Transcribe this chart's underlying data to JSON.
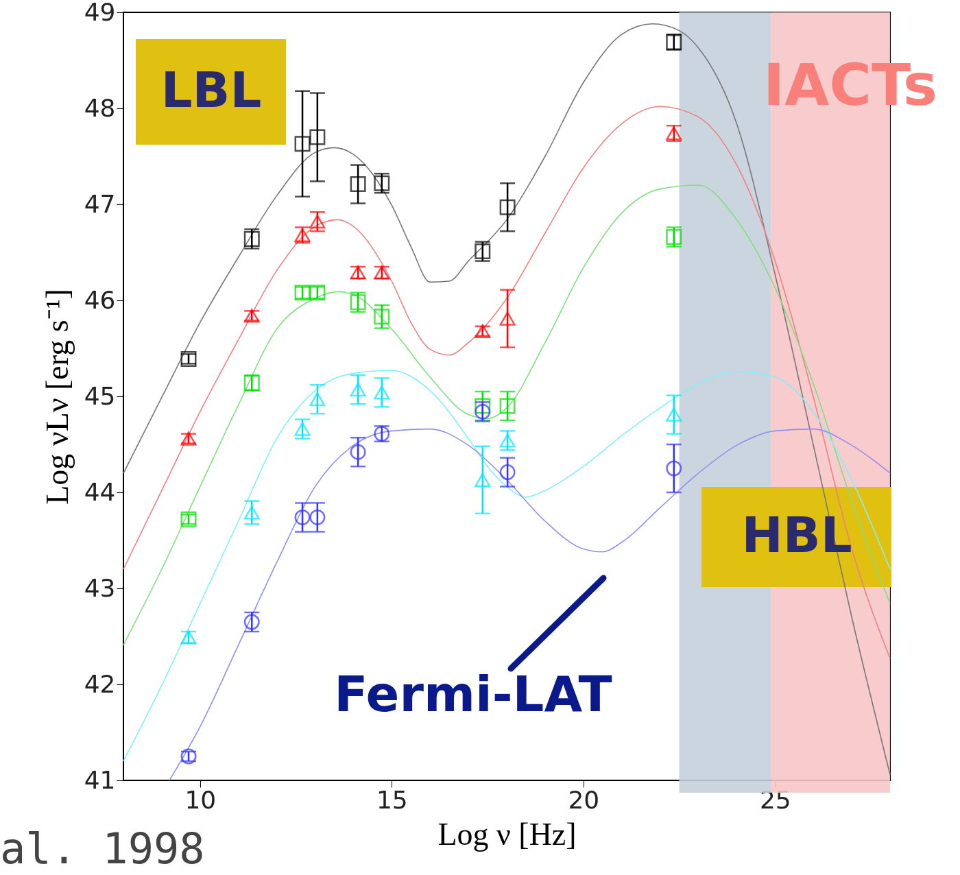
{
  "chart_data": {
    "type": "scatter",
    "xlabel": "Log ν [Hz]",
    "ylabel": "Log νLν [erg s⁻¹]",
    "xlim": [
      8,
      28
    ],
    "ylim": [
      41,
      49
    ],
    "xticks": [
      10,
      15,
      20,
      25
    ],
    "yticks": [
      41,
      42,
      43,
      44,
      45,
      46,
      47,
      48,
      49
    ],
    "bands": [
      {
        "axis": "x",
        "from": 22.5,
        "to": 24.9,
        "color": "#c5d0dc"
      },
      {
        "axis": "x",
        "from": 24.9,
        "to": 28,
        "color": "#f7c5c8"
      }
    ],
    "annotations": [
      "LBL",
      "HBL",
      "IACTs",
      "Fermi-LAT",
      "al. 1998"
    ],
    "series": [
      {
        "type": "line",
        "color": "#777777",
        "x": [
          8,
          9,
          10,
          11,
          12,
          13,
          13.5,
          14,
          15,
          15.5,
          16,
          16.5,
          17,
          18,
          19,
          20,
          21,
          21.8,
          22.5,
          23,
          24,
          25,
          26,
          27,
          28
        ],
        "values": [
          44.2,
          44.99,
          45.77,
          46.45,
          47.09,
          47.54,
          47.59,
          47.52,
          46.99,
          46.56,
          46.19,
          46.2,
          46.41,
          46.84,
          47.5,
          48.27,
          48.77,
          48.88,
          48.81,
          48.63,
          47.84,
          46.27,
          44.49,
          42.7,
          41.06
        ]
      },
      {
        "type": "line",
        "color": "#f08080",
        "x": [
          8,
          9,
          10,
          11,
          12,
          13,
          13.6,
          14,
          15,
          15.5,
          16,
          16.5,
          17,
          18,
          19,
          20,
          21,
          22,
          23,
          24,
          25,
          26,
          27,
          28
        ],
        "values": [
          43.2,
          44.02,
          44.84,
          45.59,
          46.31,
          46.77,
          46.84,
          46.77,
          46.2,
          45.77,
          45.49,
          45.43,
          45.56,
          46.02,
          46.7,
          47.38,
          47.84,
          48.02,
          47.91,
          47.41,
          46.41,
          44.99,
          43.41,
          42.27
        ]
      },
      {
        "type": "line",
        "color": "#80e080",
        "x": [
          8,
          9,
          10,
          11,
          12,
          13,
          13.6,
          14,
          15,
          16,
          17,
          17.5,
          18,
          19,
          20,
          21,
          22,
          23,
          24,
          25,
          26,
          27,
          28
        ],
        "values": [
          42.41,
          43.2,
          44.06,
          44.91,
          45.7,
          46.02,
          46.09,
          46.06,
          45.7,
          45.2,
          44.81,
          44.77,
          44.88,
          45.56,
          46.34,
          46.91,
          47.16,
          47.2,
          46.84,
          46.13,
          45.13,
          43.91,
          42.84
        ]
      },
      {
        "type": "line",
        "color": "#80f0ff",
        "x": [
          8,
          9,
          10,
          11,
          12,
          13,
          14,
          15,
          16,
          17,
          17.5,
          18,
          18.5,
          19,
          20,
          21,
          22,
          23,
          24,
          25,
          26,
          27,
          28
        ],
        "values": [
          41.2,
          41.99,
          42.84,
          43.7,
          44.56,
          45.06,
          45.24,
          45.27,
          45.06,
          44.56,
          44.27,
          44.06,
          43.95,
          44.02,
          44.27,
          44.59,
          44.88,
          45.13,
          45.26,
          45.2,
          44.84,
          44.13,
          43.2
        ]
      },
      {
        "type": "line",
        "color": "#9090f0",
        "x": [
          9.2,
          10,
          11,
          12,
          13,
          14,
          15,
          16,
          17,
          18,
          19,
          20,
          20.5,
          21,
          22,
          23,
          24,
          25,
          26,
          27,
          28
        ],
        "values": [
          41,
          41.56,
          42.41,
          43.27,
          44.06,
          44.49,
          44.64,
          44.66,
          44.49,
          44.13,
          43.7,
          43.41,
          43.38,
          43.48,
          43.84,
          44.2,
          44.49,
          44.64,
          44.66,
          44.49,
          44.2
        ]
      },
      {
        "marker": "square",
        "color": "#000000",
        "x": [
          9.7,
          11.35,
          12.67,
          13.06,
          14.12,
          14.74,
          17.37,
          18.02,
          22.36
        ],
        "values": [
          45.39,
          46.64,
          47.63,
          47.7,
          47.21,
          47.22,
          46.51,
          46.97,
          48.69
        ],
        "errors": [
          0.05,
          0.1,
          0.55,
          0.46,
          0.2,
          0.1,
          0.1,
          0.25,
          0.08
        ]
      },
      {
        "marker": "triangle",
        "color": "#ff0000",
        "x": [
          9.7,
          11.35,
          12.67,
          13.06,
          14.12,
          14.74,
          17.37,
          18.02,
          22.36
        ],
        "values": [
          44.56,
          45.84,
          46.68,
          46.82,
          46.29,
          46.29,
          45.68,
          45.81,
          47.74
        ],
        "errors": [
          0.05,
          0.05,
          0.08,
          0.1,
          0.06,
          0.06,
          0.05,
          0.3,
          0.08
        ]
      },
      {
        "marker": "square",
        "color": "#00dd00",
        "x": [
          9.7,
          11.35,
          12.67,
          13.06,
          14.12,
          14.74,
          17.37,
          18.02,
          22.36
        ],
        "values": [
          43.72,
          45.14,
          46.08,
          46.08,
          45.98,
          45.83,
          44.9,
          44.9,
          46.66
        ],
        "errors": [
          0.05,
          0.08,
          0.06,
          0.06,
          0.1,
          0.12,
          0.15,
          0.15,
          0.1
        ]
      },
      {
        "marker": "triangle",
        "color": "#00e5ff",
        "x": [
          9.7,
          11.35,
          12.67,
          13.06,
          14.12,
          14.74,
          17.37,
          18.02,
          22.36
        ],
        "values": [
          42.49,
          43.79,
          44.66,
          44.97,
          45.07,
          45.04,
          44.13,
          44.54,
          44.81
        ],
        "errors": [
          0.06,
          0.12,
          0.1,
          0.15,
          0.15,
          0.15,
          0.35,
          0.1,
          0.2
        ]
      },
      {
        "marker": "circle",
        "color": "#3333ff",
        "x": [
          9.7,
          11.35,
          12.67,
          13.06,
          14.12,
          14.74,
          17.37,
          18.02,
          22.36
        ],
        "values": [
          41.25,
          42.65,
          43.74,
          43.74,
          44.42,
          44.61,
          44.84,
          44.21,
          44.25
        ],
        "errors": [
          0.05,
          0.1,
          0.15,
          0.15,
          0.15,
          0.08,
          0.1,
          0.15,
          0.25
        ]
      }
    ]
  }
}
